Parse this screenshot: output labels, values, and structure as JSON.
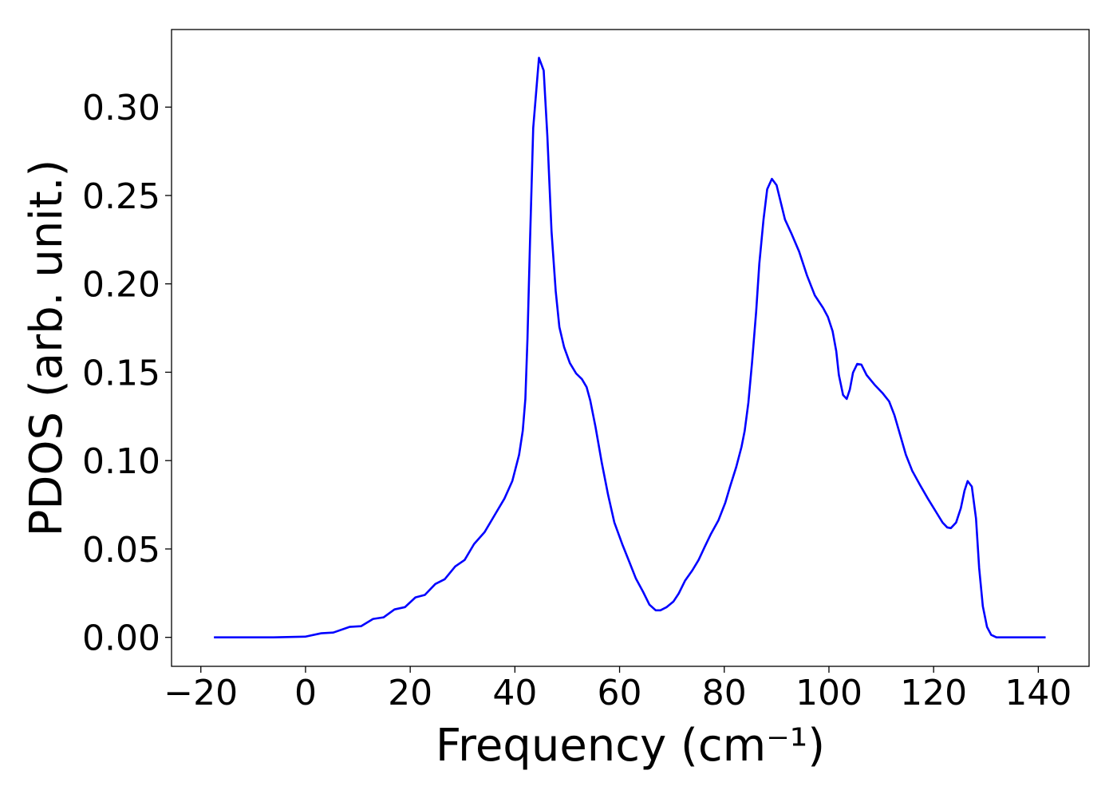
{
  "chart_data": {
    "type": "line",
    "x_label": "Frequency (cm⁻¹)",
    "y_label": "PDOS (arb. unit.)",
    "color": "#0000ff",
    "x": [
      -17.5,
      -6.1,
      0,
      3.0,
      5.3,
      8.4,
      10.6,
      12.9,
      14.9,
      17.0,
      19.0,
      21.0,
      22.8,
      24.8,
      26.6,
      28.6,
      30.4,
      32.2,
      34.2,
      36.2,
      38.0,
      39.5,
      40.8,
      41.5,
      42.0,
      42.4,
      42.9,
      43.5,
      44.6,
      45.5,
      46.2,
      47.0,
      47.8,
      48.5,
      49.4,
      50.5,
      51.7,
      52.8,
      53.7,
      54.4,
      55.4,
      56.6,
      57.8,
      59.0,
      60.5,
      61.9,
      63.1,
      64.5,
      65.7,
      66.9,
      67.8,
      69.0,
      70.3,
      71.3,
      72.5,
      73.9,
      75.1,
      76.3,
      77.4,
      78.9,
      80.2,
      81.1,
      82.3,
      83.3,
      83.9,
      84.6,
      85.3,
      86.1,
      86.7,
      87.5,
      88.2,
      89.1,
      90.0,
      91.6,
      92.8,
      94.3,
      95.8,
      97.3,
      98.9,
      99.8,
      100.7,
      101.4,
      101.9,
      102.7,
      103.4,
      104.0,
      104.6,
      105.4,
      106.2,
      107.2,
      108.7,
      110.3,
      111.5,
      112.5,
      113.6,
      114.7,
      115.9,
      117.4,
      118.9,
      120.5,
      121.7,
      122.6,
      123.3,
      124.3,
      125.2,
      125.9,
      126.5,
      127.3,
      128.1,
      128.7,
      129.4,
      130.2,
      131.0,
      132.0,
      141.4
    ],
    "values": [
      0,
      0,
      0.0004,
      0.0023,
      0.0027,
      0.0059,
      0.0063,
      0.0104,
      0.0113,
      0.0158,
      0.0171,
      0.0226,
      0.024,
      0.0302,
      0.0329,
      0.0401,
      0.0438,
      0.0528,
      0.0595,
      0.0695,
      0.0785,
      0.0884,
      0.1033,
      0.1168,
      0.1349,
      0.1687,
      0.2251,
      0.2882,
      0.3279,
      0.3207,
      0.2837,
      0.2296,
      0.1958,
      0.1755,
      0.1642,
      0.1552,
      0.1493,
      0.1461,
      0.1416,
      0.134,
      0.1191,
      0.0988,
      0.0807,
      0.065,
      0.0528,
      0.0424,
      0.0334,
      0.0257,
      0.0185,
      0.0153,
      0.0153,
      0.0171,
      0.0203,
      0.0248,
      0.032,
      0.0379,
      0.0438,
      0.0514,
      0.0582,
      0.0663,
      0.0762,
      0.0852,
      0.0965,
      0.1078,
      0.1168,
      0.1326,
      0.1552,
      0.1845,
      0.2115,
      0.2364,
      0.2535,
      0.2594,
      0.2558,
      0.2364,
      0.2287,
      0.2183,
      0.2048,
      0.1935,
      0.1863,
      0.1813,
      0.1732,
      0.1619,
      0.1484,
      0.1371,
      0.1349,
      0.1403,
      0.1498,
      0.1547,
      0.1543,
      0.1484,
      0.143,
      0.138,
      0.1335,
      0.1258,
      0.1146,
      0.1033,
      0.0943,
      0.0862,
      0.0785,
      0.0708,
      0.065,
      0.0622,
      0.0618,
      0.065,
      0.0731,
      0.083,
      0.0884,
      0.0853,
      0.0672,
      0.0392,
      0.0176,
      0.0059,
      0.0014,
      0,
      0
    ],
    "xlim": [
      -25.6,
      149.7
    ],
    "ylim": [
      -0.0164,
      0.3439
    ],
    "xticks": [
      {
        "value": -20,
        "label": "−20"
      },
      0,
      20,
      40,
      60,
      80,
      100,
      120,
      140
    ],
    "yticks": [
      {
        "value": 0,
        "label": "0.00"
      },
      {
        "value": 0.05,
        "label": "0.05"
      },
      {
        "value": 0.1,
        "label": "0.10"
      },
      {
        "value": 0.15,
        "label": "0.15"
      },
      {
        "value": 0.2,
        "label": "0.20"
      },
      {
        "value": 0.25,
        "label": "0.25"
      },
      {
        "value": 0.3,
        "label": "0.30"
      }
    ],
    "grid": false
  }
}
